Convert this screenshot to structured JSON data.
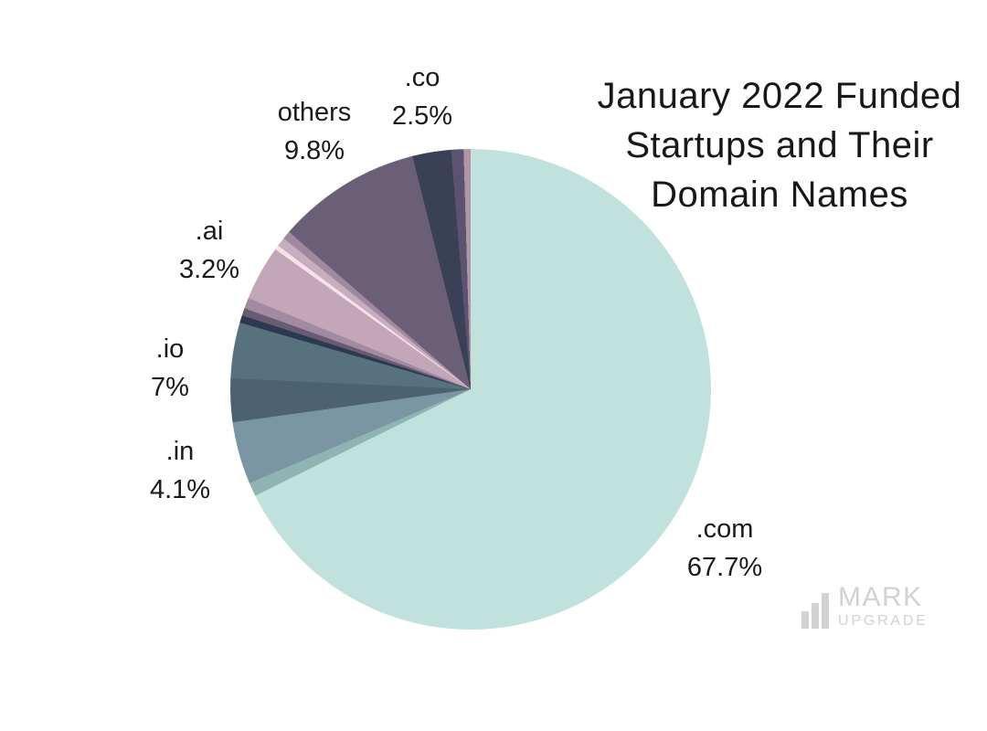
{
  "title": {
    "lines": [
      "January 2022 Funded",
      "Startups and Their",
      "Domain Names"
    ],
    "text_color": "#17181b"
  },
  "watermark": {
    "name_top": "MARK",
    "name_bottom": "UPGRADE",
    "color": "#d2d2d2",
    "icon": "bar-chart-icon"
  },
  "chart_data": {
    "type": "pie",
    "title": "January 2022 Funded Startups and Their Domain Names",
    "unit": "%",
    "legend_position": "none",
    "start_angle_deg": 0,
    "direction": "clockwise",
    "slices": [
      {
        "label": ".com",
        "value": 67.7,
        "color": "#c1e2dc"
      },
      {
        "label": ".in",
        "value": 4.1,
        "color": "#7a96a3"
      },
      {
        "label": ".io",
        "value": 7,
        "color": "#57717f"
      },
      {
        "label": ".ai",
        "value": 3.2,
        "color": "#c4a6b9"
      },
      {
        "label": "others",
        "value": 9.8,
        "color": "#6a5f77"
      },
      {
        "label": ".co",
        "value": 2.5,
        "color": "#3a4156"
      }
    ],
    "unlabeled_shade_slivers_total": 5.7,
    "render_segments": [
      {
        "start": 0,
        "end": 243.7,
        "color": "#c1e2dc",
        "group": ".com"
      },
      {
        "start": 243.7,
        "end": 247.0,
        "color": "#8fb4b1",
        "group": "sliver"
      },
      {
        "start": 247.0,
        "end": 262.1,
        "color": "#7a96a3",
        "group": ".in"
      },
      {
        "start": 262.1,
        "end": 272.6,
        "color": "#4d6271",
        "group": ".io"
      },
      {
        "start": 272.6,
        "end": 286.1,
        "color": "#57717f",
        "group": ".io"
      },
      {
        "start": 286.1,
        "end": 287.9,
        "color": "#2d3950",
        "group": "sliver"
      },
      {
        "start": 287.9,
        "end": 289.7,
        "color": "#675c72",
        "group": "sliver"
      },
      {
        "start": 289.7,
        "end": 292.3,
        "color": "#a28ba0",
        "group": "sliver"
      },
      {
        "start": 292.3,
        "end": 305.6,
        "color": "#c4a6b9",
        "group": ".ai"
      },
      {
        "start": 305.6,
        "end": 306.7,
        "color": "#f7e2e8",
        "group": "sliver"
      },
      {
        "start": 306.7,
        "end": 308.9,
        "color": "#c6aec0",
        "group": "sliver"
      },
      {
        "start": 308.9,
        "end": 310.9,
        "color": "#a0899f",
        "group": "sliver"
      },
      {
        "start": 310.9,
        "end": 346.0,
        "color": "#6a5f77",
        "group": "others"
      },
      {
        "start": 346.0,
        "end": 355.3,
        "color": "#3a4156",
        "group": ".co"
      },
      {
        "start": 355.3,
        "end": 358.3,
        "color": "#5c5370",
        "group": "sliver"
      },
      {
        "start": 358.3,
        "end": 360.0,
        "color": "#b294a7",
        "group": "sliver"
      }
    ],
    "labels": [
      {
        "name": ".com",
        "pct": "67.7%"
      },
      {
        "name": ".in",
        "pct": "4.1%"
      },
      {
        "name": ".io",
        "pct": "7%"
      },
      {
        "name": ".ai",
        "pct": "3.2%"
      },
      {
        "name": "others",
        "pct": "9.8%"
      },
      {
        "name": ".co",
        "pct": "2.5%"
      }
    ]
  }
}
